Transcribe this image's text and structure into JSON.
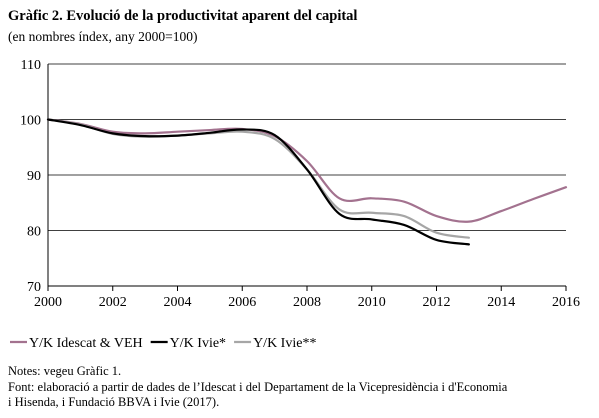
{
  "header": {
    "title": "Gràfic 2. Evolució de la productivitat aparent del capital",
    "subtitle": "(en nombres índex, any 2000=100)"
  },
  "footer": {
    "notes": "Notes: vegeu Gràfic 1.",
    "source_line1": "Font: elaboració a partir de dades de l’Idescat i del Departament de la Vicepresidència i d'Economia",
    "source_line2": "i Hisenda, i Fundació BBVA i Ivie (2017)."
  },
  "colors": {
    "series1": "#a3728f",
    "series2": "#000000",
    "series3": "#a6a6a6",
    "grid": "#000000",
    "axis": "#000000"
  },
  "chart_data": {
    "type": "line",
    "title": "Gràfic 2. Evolució de la productivitat aparent del capital",
    "subtitle": "(en nombres índex, any 2000=100)",
    "xlabel": "",
    "ylabel": "",
    "xlim": [
      2000,
      2016
    ],
    "ylim": [
      70,
      110
    ],
    "x_ticks": [
      2000,
      2002,
      2004,
      2006,
      2008,
      2010,
      2012,
      2014,
      2016
    ],
    "y_ticks": [
      70,
      80,
      90,
      100,
      110
    ],
    "grid": "horizontal",
    "legend_position": "bottom",
    "series": [
      {
        "name": "Y/K Idescat & VEH",
        "x": [
          2000,
          2001,
          2002,
          2003,
          2004,
          2005,
          2006,
          2007,
          2008,
          2009,
          2010,
          2011,
          2012,
          2013,
          2014,
          2015,
          2016
        ],
        "y": [
          100,
          99.2,
          97.8,
          97.5,
          97.8,
          98.1,
          98.3,
          97.0,
          92.5,
          85.8,
          85.8,
          85.2,
          82.6,
          81.6,
          83.5,
          85.7,
          87.8
        ]
      },
      {
        "name": "Y/K Ivie*",
        "x": [
          2000,
          2001,
          2002,
          2003,
          2004,
          2005,
          2006,
          2007,
          2008,
          2009,
          2010,
          2011,
          2012,
          2013
        ],
        "y": [
          100,
          99.0,
          97.5,
          97.0,
          97.1,
          97.6,
          98.2,
          97.2,
          91.0,
          83.0,
          82.0,
          81.0,
          78.3,
          77.5
        ]
      },
      {
        "name": "Y/K Ivie**",
        "x": [
          2000,
          2001,
          2002,
          2003,
          2004,
          2005,
          2006,
          2007,
          2008,
          2009,
          2010,
          2011,
          2012,
          2013
        ],
        "y": [
          100,
          99.1,
          97.4,
          96.9,
          97.1,
          97.5,
          97.8,
          96.5,
          91.0,
          83.8,
          83.2,
          82.6,
          79.6,
          78.7
        ]
      }
    ]
  }
}
